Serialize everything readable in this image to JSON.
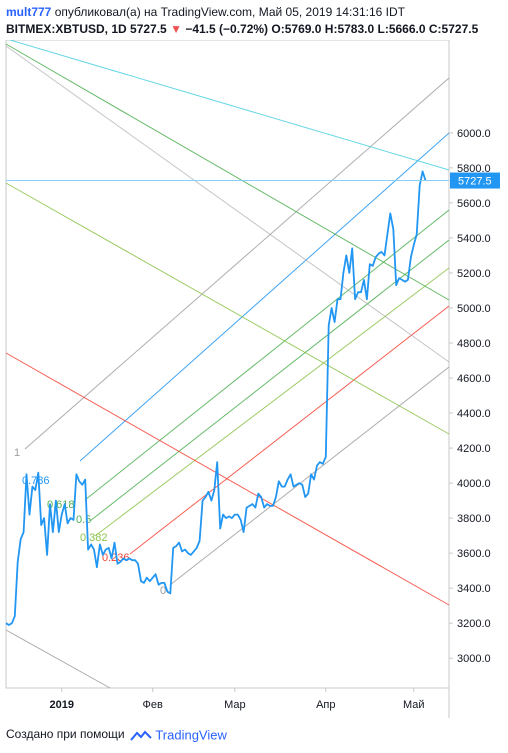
{
  "header": {
    "user": "mult777",
    "published": "опубликовал(а) на TradingView.com, Май 05, 2019 14:31:16 IDT",
    "symbol": "BITMEX:XBTUSD, 1D",
    "last": "5727.5",
    "change": "−41.5 (−0.72%)",
    "o_label": "O:",
    "o_value": "5769.0",
    "h_label": "H:",
    "h_value": "5783.0",
    "l_label": "L:",
    "l_value": "5666.0",
    "c_label": "C:",
    "c_value": "5727.5"
  },
  "footer": {
    "created_with": "Создано при помощи",
    "brand": "TradingView"
  },
  "colors": {
    "price_line": "#2196f3",
    "badge": "#2196f3",
    "axis_text": "#131722",
    "grid_border": "#c0c0c0"
  },
  "chart_data": {
    "type": "line",
    "title": "",
    "ylim": [
      2830,
      6530
    ],
    "y_ticks": [
      3000,
      3200,
      3400,
      3600,
      3800,
      4000,
      4200,
      4400,
      4600,
      4800,
      5000,
      5200,
      5400,
      5600,
      5800,
      6000
    ],
    "y_tick_labels": [
      "3000.0",
      "3200.0",
      "3400.0",
      "3600.0",
      "3800.0",
      "4000.0",
      "4200.0",
      "4400.0",
      "4600.0",
      "4800.0",
      "5000.0",
      "5200.0",
      "5400.0",
      "5600.0",
      "5800.0",
      "6000.0"
    ],
    "x_ticks": [
      {
        "date": "2019-01-01",
        "label": "2019"
      },
      {
        "date": "2019-02-01",
        "label": "Фев"
      },
      {
        "date": "2019-03-01",
        "label": "Мар"
      },
      {
        "date": "2019-04-01",
        "label": "Апр"
      },
      {
        "date": "2019-05-01",
        "label": "Май"
      }
    ],
    "x_range": [
      "2018-12-13",
      "2019-05-13"
    ],
    "last_price": 5727.5,
    "last_price_label": "5727.5",
    "series": [
      {
        "points": [
          [
            "2018-12-13",
            3200
          ],
          [
            "2018-12-14",
            3190
          ],
          [
            "2018-12-15",
            3200
          ],
          [
            "2018-12-16",
            3240
          ],
          [
            "2018-12-17",
            3550
          ],
          [
            "2018-12-18",
            3680
          ],
          [
            "2018-12-19",
            3720
          ],
          [
            "2018-12-20",
            4050
          ],
          [
            "2018-12-21",
            3820
          ],
          [
            "2018-12-22",
            3980
          ],
          [
            "2018-12-23",
            3960
          ],
          [
            "2018-12-24",
            4060
          ],
          [
            "2018-12-25",
            3760
          ],
          [
            "2018-12-26",
            3800
          ],
          [
            "2018-12-27",
            3590
          ],
          [
            "2018-12-28",
            3880
          ],
          [
            "2018-12-29",
            3720
          ],
          [
            "2018-12-30",
            3900
          ],
          [
            "2018-12-31",
            3720
          ],
          [
            "2019-01-01",
            3820
          ],
          [
            "2019-01-02",
            3880
          ],
          [
            "2019-01-03",
            3770
          ],
          [
            "2019-01-04",
            3800
          ],
          [
            "2019-01-05",
            3790
          ],
          [
            "2019-01-06",
            4050
          ],
          [
            "2019-01-07",
            4010
          ],
          [
            "2019-01-08",
            3990
          ],
          [
            "2019-01-09",
            4020
          ],
          [
            "2019-01-10",
            3620
          ],
          [
            "2019-01-11",
            3650
          ],
          [
            "2019-01-12",
            3620
          ],
          [
            "2019-01-13",
            3520
          ],
          [
            "2019-01-14",
            3650
          ],
          [
            "2019-01-15",
            3590
          ],
          [
            "2019-01-16",
            3620
          ],
          [
            "2019-01-17",
            3630
          ],
          [
            "2019-01-18",
            3570
          ],
          [
            "2019-01-19",
            3660
          ],
          [
            "2019-01-20",
            3540
          ],
          [
            "2019-01-21",
            3550
          ],
          [
            "2019-01-22",
            3570
          ],
          [
            "2019-01-23",
            3560
          ],
          [
            "2019-01-24",
            3570
          ],
          [
            "2019-01-25",
            3560
          ],
          [
            "2019-01-26",
            3560
          ],
          [
            "2019-01-27",
            3540
          ],
          [
            "2019-01-28",
            3440
          ],
          [
            "2019-01-29",
            3430
          ],
          [
            "2019-01-30",
            3460
          ],
          [
            "2019-01-31",
            3440
          ],
          [
            "2019-02-01",
            3460
          ],
          [
            "2019-02-02",
            3480
          ],
          [
            "2019-02-03",
            3420
          ],
          [
            "2019-02-04",
            3430
          ],
          [
            "2019-02-05",
            3430
          ],
          [
            "2019-02-06",
            3380
          ],
          [
            "2019-02-07",
            3370
          ],
          [
            "2019-02-08",
            3630
          ],
          [
            "2019-02-09",
            3640
          ],
          [
            "2019-02-10",
            3660
          ],
          [
            "2019-02-11",
            3610
          ],
          [
            "2019-02-12",
            3620
          ],
          [
            "2019-02-13",
            3600
          ],
          [
            "2019-02-14",
            3590
          ],
          [
            "2019-02-15",
            3610
          ],
          [
            "2019-02-16",
            3630
          ],
          [
            "2019-02-17",
            3670
          ],
          [
            "2019-02-18",
            3900
          ],
          [
            "2019-02-19",
            3920
          ],
          [
            "2019-02-20",
            3950
          ],
          [
            "2019-02-21",
            3900
          ],
          [
            "2019-02-22",
            3960
          ],
          [
            "2019-02-23",
            4120
          ],
          [
            "2019-02-24",
            3740
          ],
          [
            "2019-02-25",
            3820
          ],
          [
            "2019-02-26",
            3800
          ],
          [
            "2019-02-27",
            3810
          ],
          [
            "2019-02-28",
            3800
          ],
          [
            "2019-03-01",
            3820
          ],
          [
            "2019-03-02",
            3820
          ],
          [
            "2019-03-03",
            3790
          ],
          [
            "2019-03-04",
            3720
          ],
          [
            "2019-03-05",
            3860
          ],
          [
            "2019-03-06",
            3870
          ],
          [
            "2019-03-07",
            3880
          ],
          [
            "2019-03-08",
            3860
          ],
          [
            "2019-03-09",
            3940
          ],
          [
            "2019-03-10",
            3920
          ],
          [
            "2019-03-11",
            3860
          ],
          [
            "2019-03-12",
            3880
          ],
          [
            "2019-03-13",
            3870
          ],
          [
            "2019-03-14",
            3870
          ],
          [
            "2019-03-15",
            3920
          ],
          [
            "2019-03-16",
            4010
          ],
          [
            "2019-03-17",
            3980
          ],
          [
            "2019-03-18",
            3980
          ],
          [
            "2019-03-19",
            4020
          ],
          [
            "2019-03-20",
            4050
          ],
          [
            "2019-03-21",
            3980
          ],
          [
            "2019-03-22",
            3990
          ],
          [
            "2019-03-23",
            4000
          ],
          [
            "2019-03-24",
            3990
          ],
          [
            "2019-03-25",
            3920
          ],
          [
            "2019-03-26",
            3940
          ],
          [
            "2019-03-27",
            4050
          ],
          [
            "2019-03-28",
            4020
          ],
          [
            "2019-03-29",
            4100
          ],
          [
            "2019-03-30",
            4120
          ],
          [
            "2019-03-31",
            4110
          ],
          [
            "2019-04-01",
            4150
          ],
          [
            "2019-04-02",
            4900
          ],
          [
            "2019-04-03",
            5000
          ],
          [
            "2019-04-04",
            4920
          ],
          [
            "2019-04-05",
            5050
          ],
          [
            "2019-04-06",
            5050
          ],
          [
            "2019-04-07",
            5200
          ],
          [
            "2019-04-08",
            5300
          ],
          [
            "2019-04-09",
            5200
          ],
          [
            "2019-04-10",
            5340
          ],
          [
            "2019-04-11",
            5050
          ],
          [
            "2019-04-12",
            5090
          ],
          [
            "2019-04-13",
            5090
          ],
          [
            "2019-04-14",
            5160
          ],
          [
            "2019-04-15",
            5050
          ],
          [
            "2019-04-16",
            5250
          ],
          [
            "2019-04-17",
            5240
          ],
          [
            "2019-04-18",
            5290
          ],
          [
            "2019-04-19",
            5310
          ],
          [
            "2019-04-20",
            5320
          ],
          [
            "2019-04-21",
            5300
          ],
          [
            "2019-04-22",
            5420
          ],
          [
            "2019-04-23",
            5540
          ],
          [
            "2019-04-24",
            5450
          ],
          [
            "2019-04-25",
            5130
          ],
          [
            "2019-04-26",
            5170
          ],
          [
            "2019-04-27",
            5160
          ],
          [
            "2019-04-28",
            5150
          ],
          [
            "2019-04-29",
            5160
          ],
          [
            "2019-04-30",
            5290
          ],
          [
            "2019-05-01",
            5360
          ],
          [
            "2019-05-02",
            5420
          ],
          [
            "2019-05-03",
            5700
          ],
          [
            "2019-05-04",
            5780
          ],
          [
            "2019-05-05",
            5727.5
          ]
        ]
      }
    ],
    "fib_channel": {
      "levels": [
        {
          "label": "1",
          "color": "#9e9e9e"
        },
        {
          "label": "0.786",
          "color": "#2196f3"
        },
        {
          "label": "0.618",
          "color": "#4caf50"
        },
        {
          "label": "0.5",
          "color": "#4caf50"
        },
        {
          "label": "0.382",
          "color": "#8bc34a"
        },
        {
          "label": "0.236",
          "color": "#f44336"
        },
        {
          "label": "0",
          "color": "#9e9e9e"
        }
      ]
    }
  }
}
